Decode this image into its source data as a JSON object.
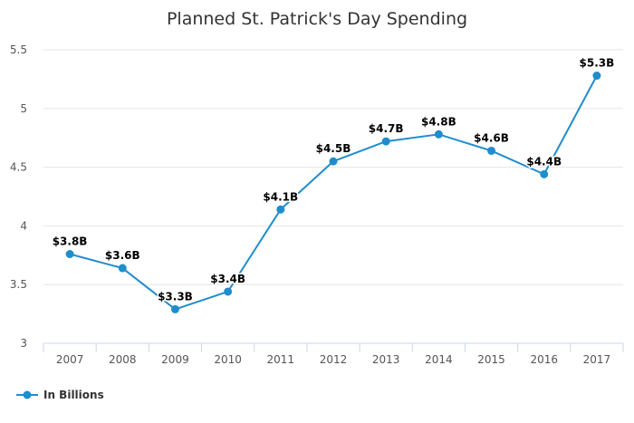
{
  "chart_data": {
    "type": "line",
    "title": "Planned St. Patrick's Day Spending",
    "categories": [
      "2007",
      "2008",
      "2009",
      "2010",
      "2011",
      "2012",
      "2013",
      "2014",
      "2015",
      "2016",
      "2017"
    ],
    "series": [
      {
        "name": "In Billions",
        "values": [
          3.76,
          3.64,
          3.29,
          3.44,
          4.14,
          4.55,
          4.72,
          4.78,
          4.64,
          4.44,
          5.28
        ],
        "data_labels": [
          "$3.8B",
          "$3.6B",
          "$3.3B",
          "$3.4B",
          "$4.1B",
          "$4.5B",
          "$4.7B",
          "$4.8B",
          "$4.6B",
          "$4.4B",
          "$5.3B"
        ],
        "color": "#1f8dcd"
      }
    ],
    "yticks": [
      "3",
      "3.5",
      "4",
      "4.5",
      "5",
      "5.5"
    ],
    "ylim": [
      3,
      5.5
    ],
    "grid": true,
    "legend_position": "bottom-left",
    "colors": {
      "grid": "#e6e6e6",
      "axis": "#ccd6eb",
      "line": "#1f8dcd"
    }
  }
}
